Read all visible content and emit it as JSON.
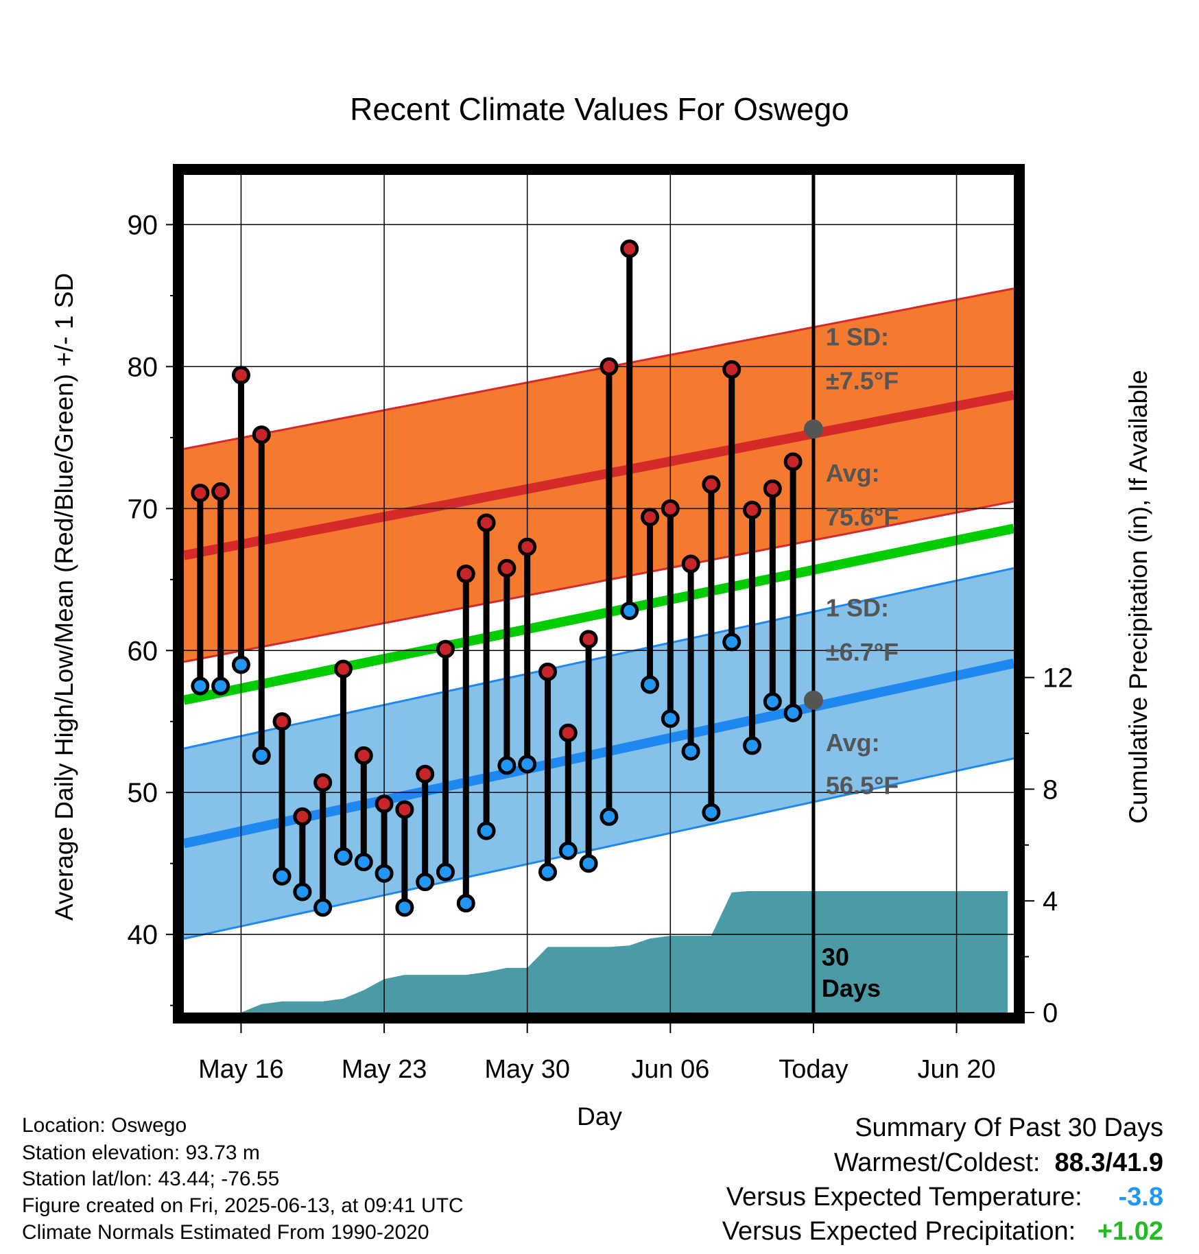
{
  "chart_data": {
    "type": "line",
    "title": "Recent Climate Values For Oswego",
    "xlabel": "Day",
    "ylabel": "Average Daily High/Low/Mean (Red/Blue/Green) +/- 1 SD",
    "ylabel_right": "Cumulative Precipitation (in), If Available",
    "x_tick_labels": [
      "May 16",
      "May 23",
      "May 30",
      "Jun 06",
      "Today",
      "Jun 20"
    ],
    "x_tick_days": [
      0,
      7,
      14,
      21,
      28,
      35
    ],
    "x_range_days": [
      -2.8,
      37.8
    ],
    "ylim": [
      34.5,
      93.5
    ],
    "y_ticks": [
      40,
      50,
      60,
      70,
      80,
      90
    ],
    "y2lim": [
      0,
      30
    ],
    "y2_ticks": [
      0,
      4,
      8,
      12
    ],
    "grid": true,
    "colors": {
      "high_band": "#f47a30",
      "high_line": "#d62a2a",
      "low_band": "#85c1e8",
      "low_line": "#1e88f0",
      "mean_line": "#00cc00",
      "precip_fill": "#4a9ba6",
      "high_dot": "#c8252a",
      "low_dot": "#2196f3",
      "annotation": "#555555"
    },
    "normals": {
      "high_mean_start": 66.7,
      "high_mean_end": 78.0,
      "high_sd": 7.5,
      "low_mean_start": 46.4,
      "low_mean_end": 59.1,
      "low_sd": 6.7,
      "mean_start": 56.5,
      "mean_end": 68.6
    },
    "annotations": {
      "high_sd_label": "1 SD:",
      "high_sd_value": "±7.5°F",
      "high_avg_label": "Avg:",
      "high_avg_value": "75.6°F",
      "low_sd_label": "1 SD:",
      "low_sd_value": "±6.7°F",
      "low_avg_label": "Avg:",
      "low_avg_value": "56.5°F",
      "period_number": "30",
      "period_unit": "Days"
    },
    "today_high_avg": 75.6,
    "today_low_avg": 56.5,
    "series": [
      {
        "name": "High",
        "days": [
          -2,
          -1,
          0,
          1,
          2,
          3,
          4,
          5,
          6,
          7,
          8,
          9,
          10,
          11,
          12,
          13,
          14,
          15,
          16,
          17,
          18,
          19,
          20,
          21,
          22,
          23,
          24,
          25,
          26,
          27
        ],
        "values": [
          71.1,
          71.2,
          79.4,
          75.2,
          55.0,
          48.3,
          50.7,
          58.7,
          52.6,
          49.2,
          48.8,
          51.3,
          60.1,
          65.4,
          69.0,
          65.8,
          67.3,
          58.5,
          54.2,
          60.8,
          80.0,
          88.3,
          69.4,
          70.0,
          66.1,
          71.7,
          79.8,
          69.9,
          71.4,
          73.3
        ]
      },
      {
        "name": "Low",
        "days": [
          -2,
          -1,
          0,
          1,
          2,
          3,
          4,
          5,
          6,
          7,
          8,
          9,
          10,
          11,
          12,
          13,
          14,
          15,
          16,
          17,
          18,
          19,
          20,
          21,
          22,
          23,
          24,
          25,
          26,
          27
        ],
        "values": [
          57.5,
          57.5,
          59.0,
          52.6,
          44.1,
          43.0,
          41.9,
          45.5,
          45.1,
          44.3,
          41.9,
          43.7,
          44.4,
          42.2,
          47.3,
          51.9,
          52.0,
          44.4,
          45.9,
          45.0,
          48.3,
          62.8,
          57.6,
          55.2,
          52.9,
          48.6,
          60.6,
          53.3,
          56.4,
          55.6
        ]
      },
      {
        "name": "Cumulative Precipitation",
        "days": [
          0,
          1,
          2,
          4,
          5,
          6,
          7,
          8,
          9,
          10,
          11,
          12,
          13,
          14,
          15,
          18,
          19,
          20,
          21,
          22,
          23,
          24,
          24.8,
          28,
          37.5
        ],
        "values": [
          0,
          0.3,
          0.4,
          0.4,
          0.5,
          0.8,
          1.2,
          1.35,
          1.35,
          1.35,
          1.35,
          1.45,
          1.6,
          1.6,
          2.35,
          2.35,
          2.4,
          2.65,
          2.75,
          2.75,
          2.75,
          4.3,
          4.35,
          4.35,
          4.35
        ]
      }
    ]
  },
  "info": {
    "location": "Location: Oswego",
    "elevation": "Station elevation: 93.73 m",
    "latlon": "Station lat/lon: 43.44; -76.55",
    "created": "Figure created on Fri, 2025-06-13, at 09:41 UTC",
    "normals": "Climate Normals Estimated From 1990-2020"
  },
  "summary": {
    "title": "Summary Of Past 30 Days",
    "warm_cold_label": "Warmest/Coldest:",
    "warm_cold_value": "88.3/41.9",
    "temp_label": "Versus Expected Temperature:",
    "temp_value": "-3.8",
    "temp_color": "#2196f3",
    "precip_label": "Versus Expected Precipitation:",
    "precip_value": "+1.02",
    "precip_color": "#22bb22"
  }
}
